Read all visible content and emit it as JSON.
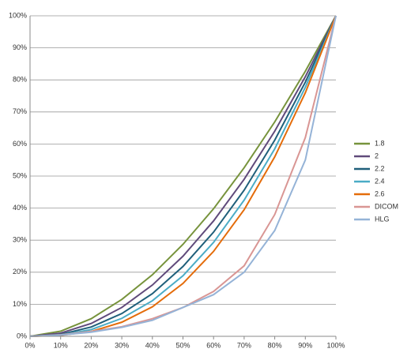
{
  "chart_data": {
    "type": "line",
    "x": [
      0,
      10,
      20,
      30,
      40,
      50,
      60,
      70,
      80,
      90,
      100
    ],
    "xlim": [
      0,
      100
    ],
    "xticks": [
      {
        "value": 0,
        "label": "0%"
      },
      {
        "value": 10,
        "label": "10%"
      },
      {
        "value": 20,
        "label": "20%"
      },
      {
        "value": 30,
        "label": "30%"
      },
      {
        "value": 40,
        "label": "40%"
      },
      {
        "value": 50,
        "label": "50%"
      },
      {
        "value": 60,
        "label": "60%"
      },
      {
        "value": 70,
        "label": "70%"
      },
      {
        "value": 80,
        "label": "80%"
      },
      {
        "value": 90,
        "label": "90%"
      },
      {
        "value": 100,
        "label": "100%"
      }
    ],
    "ylim": [
      0,
      100
    ],
    "yticks": [
      {
        "value": 0,
        "label": "0%"
      },
      {
        "value": 10,
        "label": "10%"
      },
      {
        "value": 20,
        "label": "20%"
      },
      {
        "value": 30,
        "label": "30%"
      },
      {
        "value": 40,
        "label": "40%"
      },
      {
        "value": 50,
        "label": "50%"
      },
      {
        "value": 60,
        "label": "60%"
      },
      {
        "value": 70,
        "label": "70%"
      },
      {
        "value": 80,
        "label": "80%"
      },
      {
        "value": 90,
        "label": "90%"
      },
      {
        "value": 100,
        "label": "100%"
      }
    ],
    "grid": true,
    "legend": "right",
    "series": [
      {
        "name": "1.8",
        "color": "#77933c",
        "values": [
          0,
          1.6,
          5.5,
          11.5,
          19.2,
          28.7,
          39.8,
          52.6,
          66.9,
          82.7,
          100
        ]
      },
      {
        "name": "2",
        "color": "#604a7b",
        "values": [
          0,
          1,
          4,
          9,
          16,
          25,
          36,
          49,
          64,
          81,
          100
        ]
      },
      {
        "name": "2.2",
        "color": "#1f5f7a",
        "values": [
          0,
          0.6,
          2.9,
          7.1,
          13.3,
          21.8,
          32.5,
          45.6,
          61.2,
          79.3,
          100
        ]
      },
      {
        "name": "2.4",
        "color": "#4bacc6",
        "values": [
          0,
          0.4,
          2.1,
          5.6,
          11.1,
          18.9,
          29.3,
          42.5,
          58.5,
          77.7,
          100
        ]
      },
      {
        "name": "2.6",
        "color": "#e46c0a",
        "values": [
          0,
          0.3,
          1.5,
          4.4,
          9.2,
          16.5,
          26.5,
          39.5,
          56,
          76,
          100
        ]
      },
      {
        "name": "DICOM",
        "color": "#d99694",
        "values": [
          0,
          0.5,
          1.5,
          3,
          5.5,
          9,
          14,
          22,
          38,
          62,
          100
        ]
      },
      {
        "name": "HLG",
        "color": "#95b3d7",
        "values": [
          0,
          0.4,
          1.3,
          2.8,
          5,
          9,
          13,
          20,
          33,
          55,
          100
        ]
      }
    ]
  }
}
